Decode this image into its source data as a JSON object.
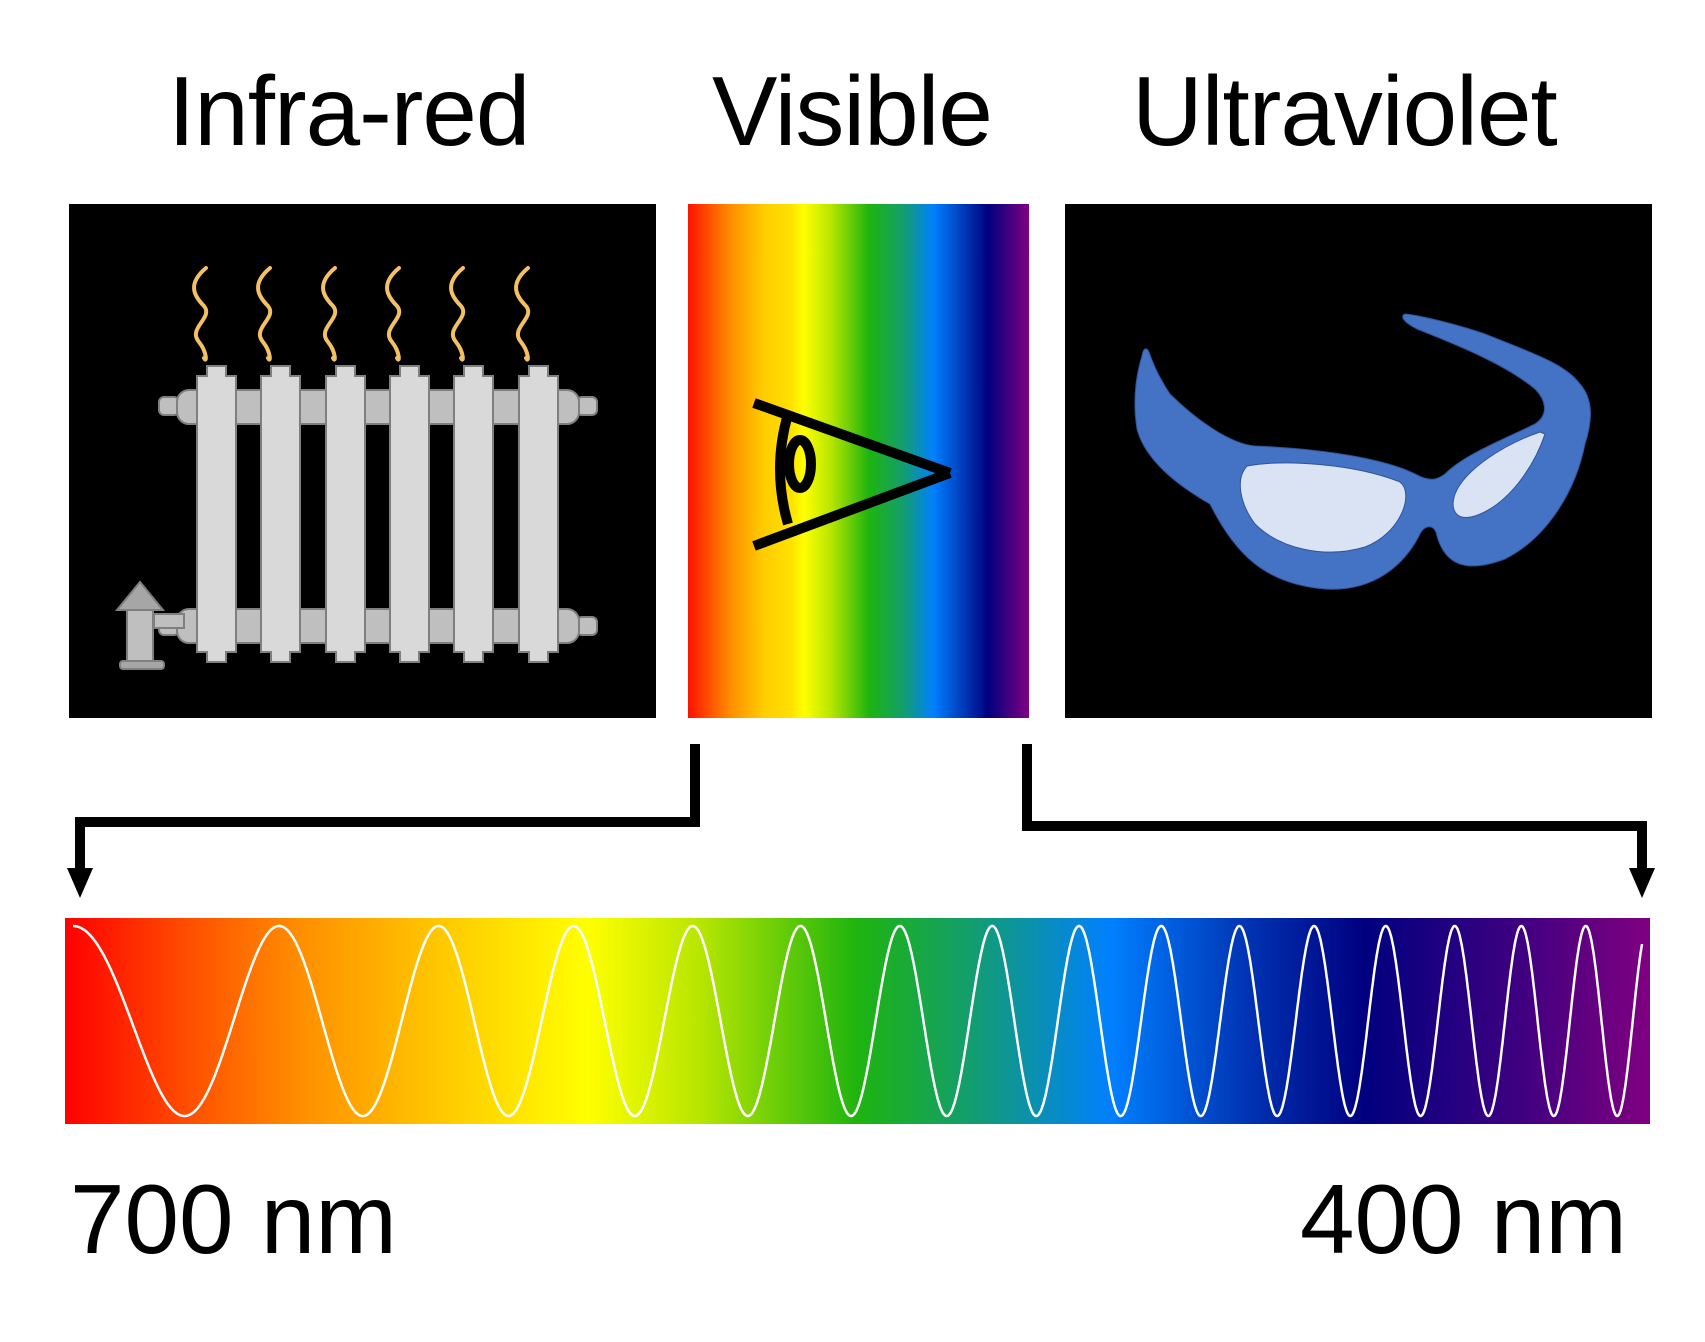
{
  "titles": {
    "infrared": "Infra-red",
    "visible": "Visible",
    "ultraviolet": "Ultraviolet"
  },
  "panels": {
    "infrared": {
      "icon": "radiator-icon",
      "heat_waves": 6,
      "fins": 6,
      "background": "#000000",
      "fin_color": "#d9d9d9",
      "pipe_color": "#bfbfbf",
      "heat_color": "#f4c064"
    },
    "visible": {
      "icon": "eye-icon",
      "gradient_stops": [
        "#ff1200",
        "#ff8a00",
        "#ffcc00",
        "#ffff00",
        "#7fd400",
        "#1eb40f",
        "#139e6c",
        "#0080ff",
        "#00007f",
        "#800080"
      ]
    },
    "ultraviolet": {
      "icon": "sunglasses-icon",
      "background": "#000000",
      "frame_color": "#4472c4",
      "lens_color": "#dae3f3"
    }
  },
  "spectrum_bar": {
    "gradient_stops": [
      "#ff0000",
      "#ff8000",
      "#ffd700",
      "#ffff00",
      "#1eb40f",
      "#0080ff",
      "#00007f",
      "#800080"
    ],
    "wave_color": "#ffffff",
    "wave_peaks": 16
  },
  "wavelength_labels": {
    "left": "700 nm",
    "right": "400 nm"
  }
}
